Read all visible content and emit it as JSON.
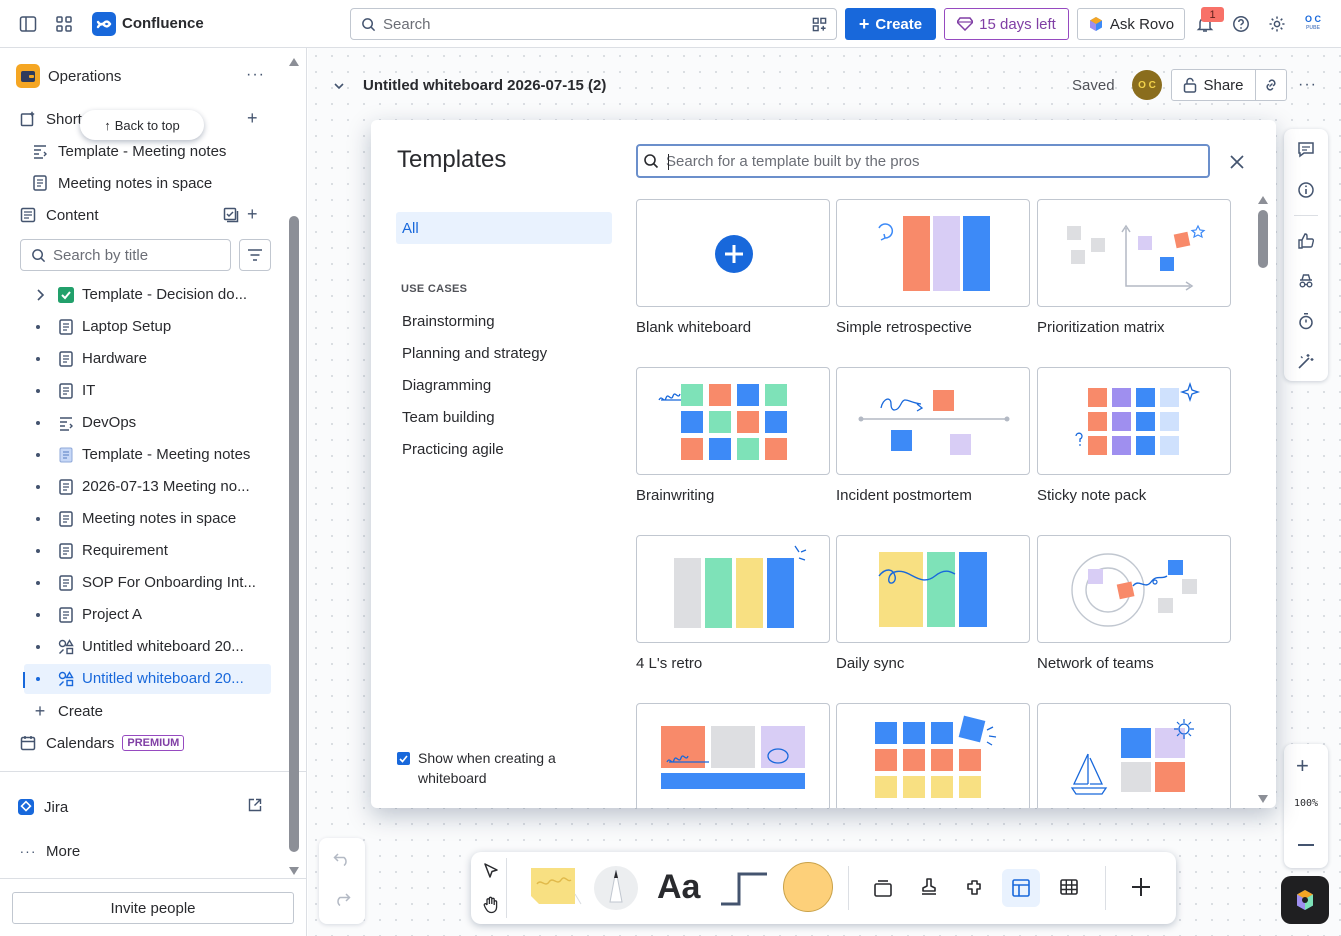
{
  "topbar": {
    "brand": "Confluence",
    "search_placeholder": "Search",
    "create_label": "Create",
    "trial_label": "15 days left",
    "rovo_label": "Ask Rovo",
    "notification_count": "1",
    "avatar_initials_top": "O C",
    "avatar_initials_bottom": "PUBE"
  },
  "sidebar": {
    "space_name": "Operations",
    "shortcuts_label": "Short",
    "back_to_top": "Back to top",
    "shortcuts": [
      "Template - Meeting notes",
      "Meeting notes in space"
    ],
    "content_label": "Content",
    "search_placeholder": "Search by title",
    "tree": [
      {
        "label": "Template - Decision do...",
        "icon": "decision-check-icon"
      },
      {
        "label": "Laptop Setup",
        "icon": "page-icon"
      },
      {
        "label": "Hardware",
        "icon": "page-icon"
      },
      {
        "label": "IT",
        "icon": "page-icon"
      },
      {
        "label": "DevOps",
        "icon": "template-icon"
      },
      {
        "label": "Template - Meeting notes",
        "icon": "notes-icon"
      },
      {
        "label": "2026-07-13 Meeting no...",
        "icon": "page-icon"
      },
      {
        "label": "Meeting notes in space",
        "icon": "page-icon"
      },
      {
        "label": "Requirement",
        "icon": "page-icon"
      },
      {
        "label": "SOP For Onboarding Int...",
        "icon": "page-icon"
      },
      {
        "label": "Project A",
        "icon": "page-icon"
      },
      {
        "label": "Untitled whiteboard 20...",
        "icon": "whiteboard-icon"
      },
      {
        "label": "Untitled whiteboard 20...",
        "icon": "whiteboard-icon"
      }
    ],
    "create_label": "Create",
    "calendars_label": "Calendars",
    "premium_label": "PREMIUM",
    "jira_label": "Jira",
    "more_label": "More",
    "invite_label": "Invite people"
  },
  "whiteboard": {
    "title": "Untitled whiteboard 2026-07-15 (2)",
    "saved_label": "Saved",
    "avatar_initials": "O C",
    "share_label": "Share",
    "zoom_level": "100%"
  },
  "templates_modal": {
    "title": "Templates",
    "search_placeholder": "Search for a template built by the pros",
    "category_all": "All",
    "use_cases_heading": "USE CASES",
    "categories": [
      "Brainstorming",
      "Planning and strategy",
      "Diagramming",
      "Team building",
      "Practicing agile"
    ],
    "show_when_label": "Show when creating a whiteboard",
    "templates": [
      {
        "label": "Blank whiteboard"
      },
      {
        "label": "Simple retrospective"
      },
      {
        "label": "Prioritization matrix"
      },
      {
        "label": "Brainwriting"
      },
      {
        "label": "Incident postmortem"
      },
      {
        "label": "Sticky note pack"
      },
      {
        "label": "4 L's retro"
      },
      {
        "label": "Daily sync"
      },
      {
        "label": "Network of teams"
      },
      {
        "label": ""
      },
      {
        "label": ""
      },
      {
        "label": ""
      }
    ]
  },
  "toolbar": {
    "text_tool_label": "Aa"
  },
  "colors": {
    "brand_blue": "#1868db",
    "coral": "#f88a6a",
    "lavender": "#d8cdf5",
    "blue": "#3d8af7",
    "mint": "#7ee2b8",
    "yellow": "#f8e082",
    "gray": "#dddee1",
    "purple": "#9f8fef"
  }
}
